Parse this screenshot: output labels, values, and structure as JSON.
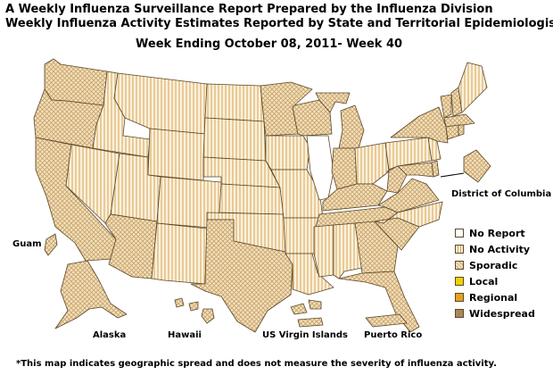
{
  "header": {
    "title_line1": "A Weekly Influenza Surveillance Report Prepared by the Influenza Division",
    "title_line2": "Weekly Influenza Activity Estimates Reported by State and Territorial Epidemiologists*",
    "week": "Week Ending October 08, 2011- Week 40"
  },
  "labels": {
    "dc": "District of Columbia",
    "guam": "Guam",
    "alaska": "Alaska",
    "hawaii": "Hawaii",
    "usvi": "US Virgin Islands",
    "pr": "Puerto Rico"
  },
  "legend": [
    {
      "label": "No Report",
      "color": "#ffffff",
      "pattern": "none"
    },
    {
      "label": "No Activity",
      "color": "#f5e6c8",
      "pattern": "vertical-stripes"
    },
    {
      "label": "Sporadic",
      "color": "#f0dcb4",
      "pattern": "crosshatch"
    },
    {
      "label": "Local",
      "color": "#f0d000",
      "pattern": "solid"
    },
    {
      "label": "Regional",
      "color": "#e8a020",
      "pattern": "solid"
    },
    {
      "label": "Widespread",
      "color": "#a8885a",
      "pattern": "solid"
    }
  ],
  "footnote": "*This map indicates geographic spread and does not measure the severity of influenza activity.",
  "map_data": {
    "sporadic": [
      "Washington",
      "Oregon",
      "California",
      "Arizona",
      "Texas",
      "Minnesota",
      "Wisconsin",
      "Michigan",
      "Indiana",
      "Kentucky",
      "Tennessee",
      "Georgia",
      "South Carolina",
      "Florida",
      "Virginia",
      "West Virginia",
      "Maryland",
      "Delaware",
      "District of Columbia",
      "New York",
      "Vermont",
      "New Hampshire",
      "Massachusetts",
      "Connecticut",
      "Rhode Island",
      "Alaska",
      "Hawaii",
      "Guam",
      "US Virgin Islands",
      "Puerto Rico"
    ],
    "no_activity": [
      "Idaho",
      "Montana",
      "Wyoming",
      "Nevada",
      "Utah",
      "Colorado",
      "New Mexico",
      "North Dakota",
      "South Dakota",
      "Nebraska",
      "Kansas",
      "Oklahoma",
      "Iowa",
      "Missouri",
      "Arkansas",
      "Louisiana",
      "Mississippi",
      "Alabama",
      "Ohio",
      "Pennsylvania",
      "New Jersey",
      "North Carolina",
      "Maine"
    ],
    "no_report": [
      "Illinois"
    ]
  }
}
